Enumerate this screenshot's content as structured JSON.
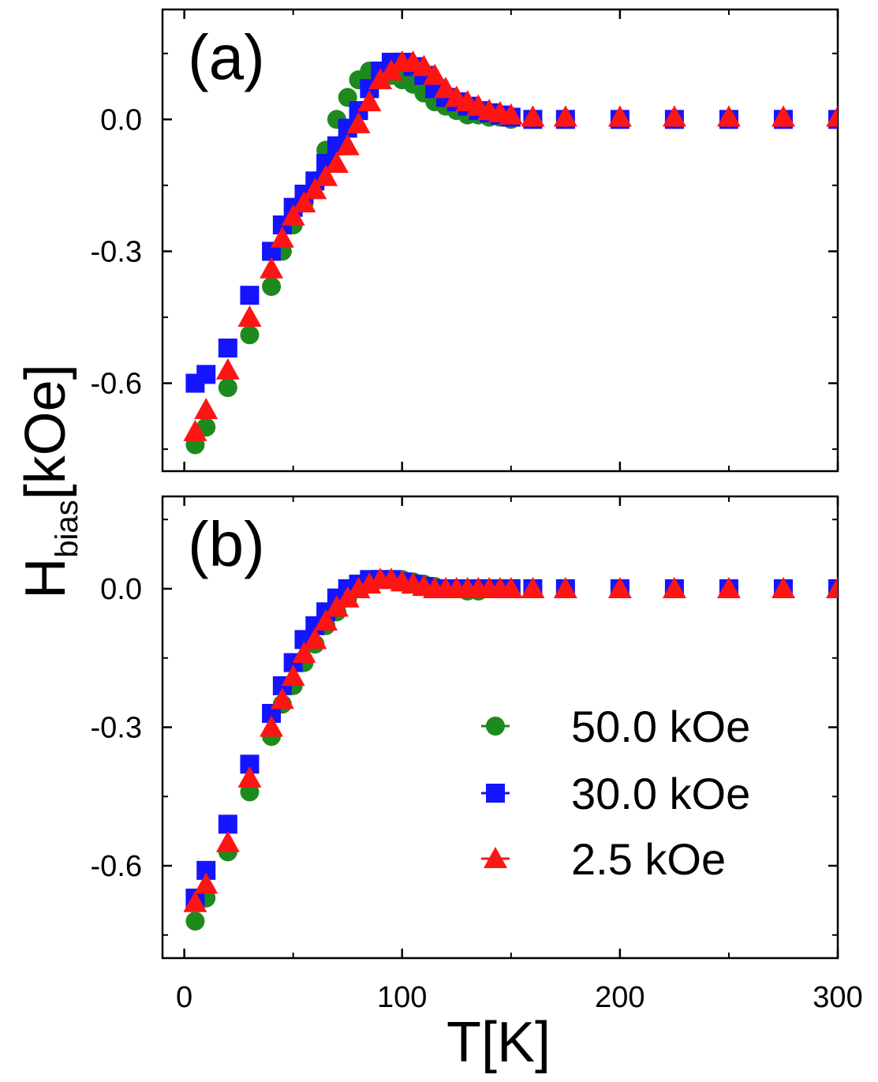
{
  "chart_data": [
    {
      "panel_label": "(a)",
      "type": "scatter",
      "xlim": [
        -10,
        300
      ],
      "ylim": [
        -0.8,
        0.25
      ],
      "x_ticks": [
        "0",
        "100",
        "200",
        "300"
      ],
      "y_ticks": [
        "0.0",
        "-0.3",
        "-0.6"
      ],
      "series": [
        {
          "name": "50.0 kOe",
          "color": "#1e8a1e",
          "marker": "circle",
          "x": [
            5,
            10,
            20,
            30,
            40,
            45,
            50,
            55,
            60,
            65,
            70,
            75,
            80,
            85,
            90,
            95,
            100,
            105,
            110,
            115,
            120,
            125,
            130,
            135,
            140,
            145,
            150,
            160,
            175,
            200,
            225,
            250,
            275,
            300
          ],
          "y": [
            -0.74,
            -0.7,
            -0.61,
            -0.49,
            -0.38,
            -0.3,
            -0.24,
            -0.19,
            -0.14,
            -0.07,
            0.0,
            0.05,
            0.09,
            0.11,
            0.11,
            0.1,
            0.09,
            0.08,
            0.06,
            0.04,
            0.03,
            0.02,
            0.01,
            0.01,
            0.005,
            0.005,
            0.0,
            0.0,
            0.0,
            0.0,
            0.0,
            0.0,
            0.0,
            0.0
          ]
        },
        {
          "name": "30.0 kOe",
          "color": "#1414ff",
          "marker": "square",
          "x": [
            5,
            10,
            20,
            30,
            40,
            45,
            50,
            55,
            60,
            65,
            70,
            75,
            80,
            85,
            90,
            95,
            100,
            105,
            110,
            115,
            120,
            125,
            130,
            135,
            140,
            145,
            150,
            160,
            175,
            200,
            225,
            250,
            275,
            300
          ],
          "y": [
            -0.6,
            -0.58,
            -0.52,
            -0.4,
            -0.3,
            -0.24,
            -0.2,
            -0.17,
            -0.14,
            -0.1,
            -0.06,
            -0.02,
            0.02,
            0.07,
            0.11,
            0.13,
            0.13,
            0.12,
            0.1,
            0.07,
            0.05,
            0.04,
            0.03,
            0.02,
            0.015,
            0.01,
            0.005,
            0.0,
            0.0,
            0.0,
            0.0,
            0.0,
            0.0,
            0.0
          ]
        },
        {
          "name": "2.5 kOe",
          "color": "#ff1414",
          "marker": "triangle",
          "x": [
            5,
            10,
            20,
            30,
            40,
            45,
            50,
            55,
            60,
            65,
            70,
            75,
            80,
            85,
            90,
            95,
            100,
            105,
            110,
            115,
            120,
            125,
            130,
            135,
            140,
            145,
            150,
            160,
            175,
            200,
            225,
            250,
            275,
            300
          ],
          "y": [
            -0.71,
            -0.66,
            -0.57,
            -0.45,
            -0.34,
            -0.27,
            -0.22,
            -0.19,
            -0.16,
            -0.13,
            -0.1,
            -0.06,
            -0.01,
            0.04,
            0.09,
            0.11,
            0.13,
            0.13,
            0.12,
            0.1,
            0.07,
            0.05,
            0.04,
            0.03,
            0.02,
            0.015,
            0.01,
            0.005,
            0.005,
            0.005,
            0.005,
            0.005,
            0.005,
            0.005
          ]
        }
      ]
    },
    {
      "panel_label": "(b)",
      "type": "scatter",
      "xlim": [
        -10,
        300
      ],
      "ylim": [
        -0.8,
        0.2
      ],
      "x_ticks": [
        "0",
        "100",
        "200",
        "300"
      ],
      "y_ticks": [
        "0.0",
        "-0.3",
        "-0.6"
      ],
      "series": [
        {
          "name": "50.0 kOe",
          "color": "#1e8a1e",
          "marker": "circle",
          "x": [
            5,
            10,
            20,
            30,
            40,
            45,
            50,
            55,
            60,
            65,
            70,
            75,
            80,
            85,
            90,
            95,
            100,
            105,
            110,
            115,
            120,
            125,
            130,
            135,
            140,
            145,
            150,
            160,
            175,
            200,
            225,
            250,
            275,
            300
          ],
          "y": [
            -0.72,
            -0.67,
            -0.57,
            -0.44,
            -0.32,
            -0.25,
            -0.21,
            -0.16,
            -0.12,
            -0.08,
            -0.05,
            -0.02,
            0.0,
            0.01,
            0.02,
            0.02,
            0.02,
            0.015,
            0.01,
            0.005,
            0.0,
            0.0,
            -0.005,
            -0.005,
            0.0,
            0.0,
            0.0,
            0.0,
            0.0,
            0.0,
            0.0,
            0.0,
            0.0,
            0.0
          ]
        },
        {
          "name": "30.0 kOe",
          "color": "#1414ff",
          "marker": "square",
          "x": [
            5,
            10,
            20,
            30,
            40,
            45,
            50,
            55,
            60,
            65,
            70,
            75,
            80,
            85,
            90,
            95,
            100,
            105,
            110,
            115,
            120,
            125,
            130,
            135,
            140,
            145,
            150,
            160,
            175,
            200,
            225,
            250,
            275,
            300
          ],
          "y": [
            -0.67,
            -0.61,
            -0.51,
            -0.38,
            -0.27,
            -0.21,
            -0.16,
            -0.11,
            -0.08,
            -0.05,
            -0.02,
            0.0,
            0.01,
            0.02,
            0.02,
            0.02,
            0.015,
            0.01,
            0.005,
            0.0,
            0.0,
            0.0,
            0.0,
            0.0,
            0.0,
            0.0,
            0.0,
            0.0,
            0.0,
            0.0,
            0.0,
            0.0,
            0.0,
            0.0
          ]
        },
        {
          "name": "2.5 kOe",
          "color": "#ff1414",
          "marker": "triangle",
          "x": [
            5,
            10,
            20,
            30,
            40,
            45,
            50,
            55,
            60,
            65,
            70,
            75,
            80,
            85,
            90,
            95,
            100,
            105,
            110,
            115,
            120,
            125,
            130,
            135,
            140,
            145,
            150,
            160,
            175,
            200,
            225,
            250,
            275,
            300
          ],
          "y": [
            -0.68,
            -0.64,
            -0.55,
            -0.41,
            -0.3,
            -0.24,
            -0.19,
            -0.14,
            -0.11,
            -0.07,
            -0.04,
            -0.02,
            0.0,
            0.01,
            0.02,
            0.02,
            0.015,
            0.01,
            0.005,
            0.0,
            0.0,
            0.0,
            0.0,
            0.0,
            0.0,
            0.0,
            0.0,
            0.0,
            0.0,
            0.0,
            0.0,
            0.0,
            0.0,
            0.0
          ]
        }
      ],
      "legend": {
        "placement": "bottom-right",
        "entries": [
          "50.0 kOe",
          "30.0 kOe",
          "2.5 kOe"
        ]
      }
    }
  ],
  "axis_labels": {
    "x": "T[K]",
    "y_main": "H",
    "y_sub": "bias",
    "y_unit": "[kOe]"
  }
}
